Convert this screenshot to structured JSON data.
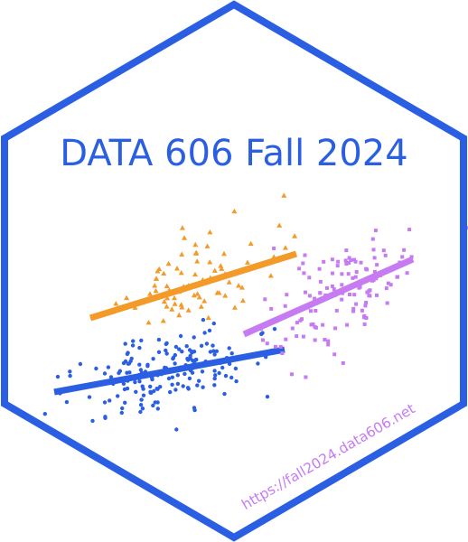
{
  "sticker": {
    "title": "DATA 606 Fall 2024",
    "url": "https://fall2024.data606.net",
    "colors": {
      "border": "#2b5fe3",
      "background": "#ffffff",
      "title": "#2b5fe3",
      "url": "#c77bf2"
    }
  },
  "illustration": {
    "clusters": [
      {
        "name": "blue",
        "marker": "circle",
        "color": "#2b5fe3",
        "seed": 11,
        "count": 175,
        "center": [
          185,
          412
        ],
        "spread": [
          48,
          24
        ],
        "trend": [
          [
            60,
            434
          ],
          [
            315,
            387
          ]
        ]
      },
      {
        "name": "orange",
        "marker": "triangle",
        "color": "#f39a29",
        "seed": 29,
        "count": 75,
        "center": [
          215,
          310
        ],
        "spread": [
          42,
          24
        ],
        "trend": [
          [
            100,
            352
          ],
          [
            328,
            281
          ]
        ]
      },
      {
        "name": "purple",
        "marker": "square",
        "color": "#c77bf2",
        "seed": 47,
        "count": 130,
        "center": [
          375,
          325
        ],
        "spread": [
          45,
          26
        ],
        "trend": [
          [
            270,
            370
          ],
          [
            457,
            287
          ]
        ]
      }
    ]
  }
}
